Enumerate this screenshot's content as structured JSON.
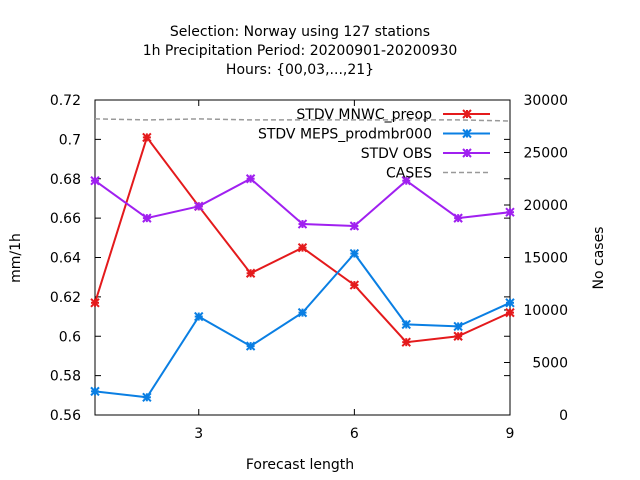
{
  "chart_data": {
    "type": "line",
    "title_lines": [
      "Selection: Norway using   127 stations",
      "1h Precipitation    Period: 20200901-20200930",
      "Hours: {00,03,...,21}"
    ],
    "xlabel": "Forecast length",
    "ylabel": "mm/1h",
    "y2label": "No cases",
    "xlim": [
      1,
      9
    ],
    "ylim": [
      0.56,
      0.72
    ],
    "y2lim": [
      0,
      30000
    ],
    "xticks": [
      "3",
      "6",
      "9"
    ],
    "yticks": [
      "0.56",
      "0.58",
      "0.6",
      "0.62",
      "0.64",
      "0.66",
      "0.68",
      "0.7",
      "0.72"
    ],
    "y2ticks": [
      "0",
      "5000",
      "10000",
      "15000",
      "20000",
      "25000",
      "30000"
    ],
    "grid": false,
    "legend_position": "top-right",
    "x": [
      1,
      2,
      3,
      4,
      5,
      6,
      7,
      8,
      9
    ],
    "series": [
      {
        "name": "STDV MNWC_preop",
        "color": "#e41a1c",
        "axis": "y",
        "values": [
          0.617,
          0.701,
          0.666,
          0.632,
          0.645,
          0.626,
          0.597,
          0.6,
          0.612
        ]
      },
      {
        "name": "STDV MEPS_prodmbr000",
        "color": "#0a7fe3",
        "axis": "y",
        "values": [
          0.572,
          0.569,
          0.61,
          0.595,
          0.612,
          0.642,
          0.606,
          0.605,
          0.617
        ]
      },
      {
        "name": "STDV OBS",
        "color": "#a020f0",
        "axis": "y",
        "values": [
          0.679,
          0.66,
          0.666,
          0.68,
          0.657,
          0.656,
          0.679,
          0.66,
          0.663
        ]
      },
      {
        "name": "CASES",
        "color": "#999999",
        "axis": "y2",
        "dashed": true,
        "values": [
          28200,
          28100,
          28200,
          28100,
          28100,
          28100,
          28100,
          28100,
          28000
        ]
      }
    ]
  }
}
